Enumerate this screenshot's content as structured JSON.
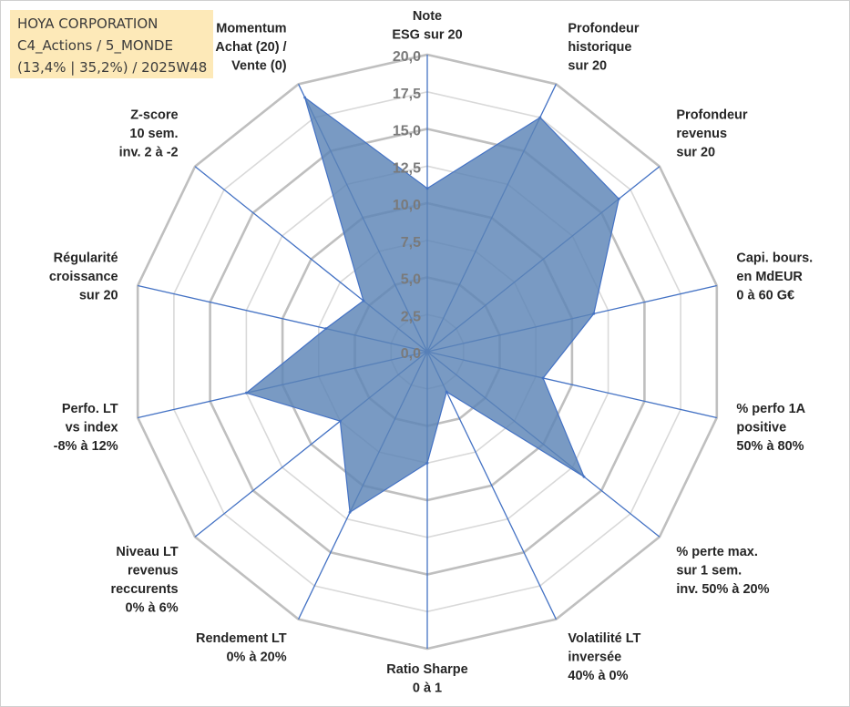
{
  "info": {
    "company": "HOYA CORPORATION",
    "category": "C4_Actions / 5_MONDE",
    "stats": "(13,4% | 35,2%) / 2025W48"
  },
  "colors": {
    "fill": "#5b84b6",
    "spoke": "#4472c4",
    "grid_major": "#bfbfbf",
    "grid_minor": "#d9d9d9"
  },
  "chart_data": {
    "type": "radar",
    "title": "",
    "r_range": [
      0,
      20
    ],
    "r_ticks": [
      "0,0",
      "2,5",
      "5,0",
      "7,5",
      "10,0",
      "12,5",
      "15,0",
      "17,5",
      "20,0"
    ],
    "grid": true,
    "axes": [
      [
        "Note",
        "ESG sur 20"
      ],
      [
        "Profondeur",
        "historique",
        "sur 20"
      ],
      [
        "Profondeur",
        "revenus",
        "sur 20"
      ],
      [
        "Capi. bours.",
        "en MdEUR",
        "0 à 60 G€"
      ],
      [
        "% perfo 1A",
        "positive",
        "50% à 80%"
      ],
      [
        "% perte max.",
        "sur 1 sem.",
        "inv. 50% à 20%"
      ],
      [
        "Volatilité LT",
        "inversée",
        "40% à 0%"
      ],
      [
        "Ratio Sharpe",
        "0 à 1"
      ],
      [
        "Rendement LT",
        "0% à 20%"
      ],
      [
        "Niveau LT",
        "revenus",
        "reccurents",
        "0% à 6%"
      ],
      [
        "Perfo. LT",
        "vs index",
        "-8% à 12%"
      ],
      [
        "Régularité",
        "croissance",
        "sur 20"
      ],
      [
        "Z-score",
        "10 sem.",
        "inv. 2 à -2"
      ],
      [
        "Momentum",
        "Achat (20) /",
        "Vente (0)"
      ]
    ],
    "series": [
      {
        "name": "HOYA CORPORATION",
        "values": [
          11.0,
          17.5,
          16.5,
          11.5,
          8.0,
          13.5,
          3.0,
          7.5,
          12.0,
          7.5,
          12.5,
          7.0,
          5.5,
          19.0
        ]
      }
    ]
  }
}
